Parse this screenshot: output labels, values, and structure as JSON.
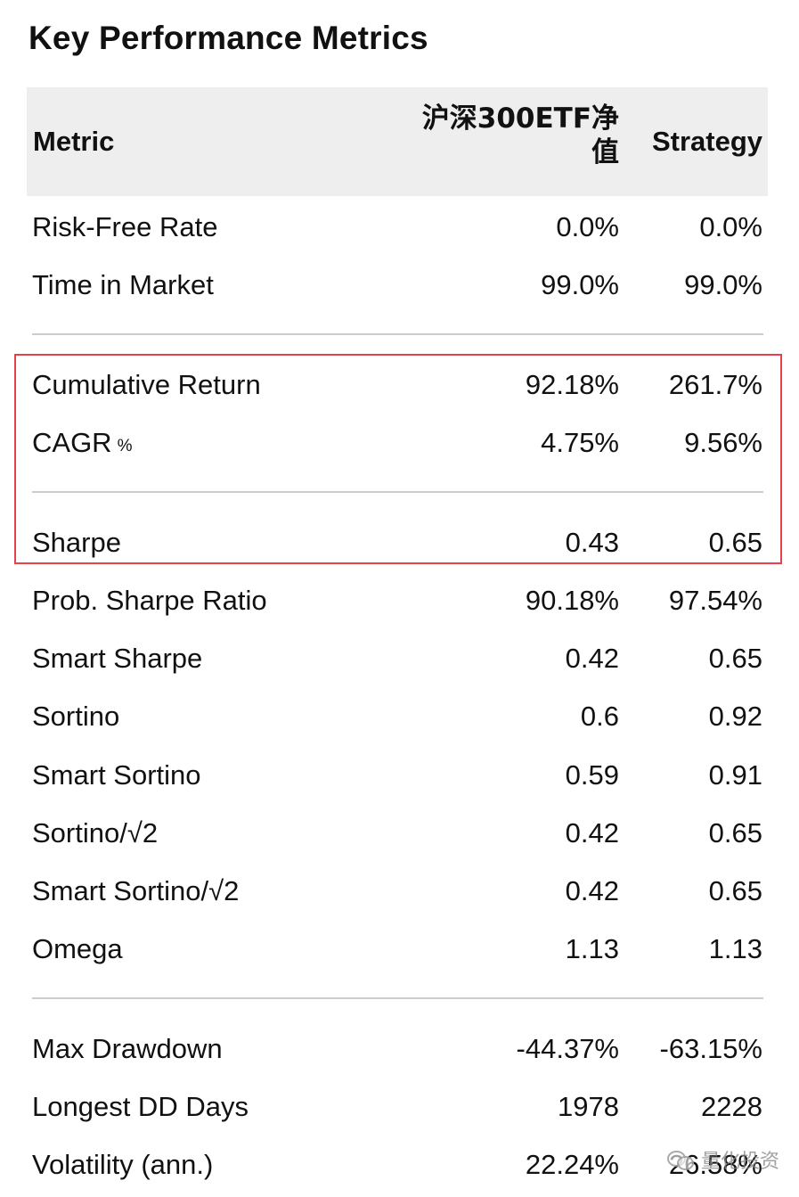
{
  "title": "Key Performance Metrics",
  "header": {
    "metric": "Metric",
    "benchmark": "沪深300ETF净值",
    "strategy": "Strategy"
  },
  "rows": [
    {
      "label": "Risk-Free Rate",
      "sub": "",
      "benchmark": "0.0%",
      "strategy": "0.0%"
    },
    {
      "label": "Time in Market",
      "sub": "",
      "benchmark": "99.0%",
      "strategy": "99.0%"
    },
    {
      "label": "Cumulative Return",
      "sub": "",
      "benchmark": "92.18%",
      "strategy": "261.7%"
    },
    {
      "label": "CAGR",
      "sub": "%",
      "benchmark": "4.75%",
      "strategy": "9.56%"
    },
    {
      "label": "Sharpe",
      "sub": "",
      "benchmark": "0.43",
      "strategy": "0.65"
    },
    {
      "label": "Prob. Sharpe Ratio",
      "sub": "",
      "benchmark": "90.18%",
      "strategy": "97.54%"
    },
    {
      "label": "Smart Sharpe",
      "sub": "",
      "benchmark": "0.42",
      "strategy": "0.65"
    },
    {
      "label": "Sortino",
      "sub": "",
      "benchmark": "0.6",
      "strategy": "0.92"
    },
    {
      "label": "Smart Sortino",
      "sub": "",
      "benchmark": "0.59",
      "strategy": "0.91"
    },
    {
      "label": "Sortino/√2",
      "sub": "",
      "benchmark": "0.42",
      "strategy": "0.65"
    },
    {
      "label": "Smart Sortino/√2",
      "sub": "",
      "benchmark": "0.42",
      "strategy": "0.65"
    },
    {
      "label": "Omega",
      "sub": "",
      "benchmark": "1.13",
      "strategy": "1.13"
    },
    {
      "label": "Max Drawdown",
      "sub": "",
      "benchmark": "-44.37%",
      "strategy": "-63.15%"
    },
    {
      "label": "Longest DD Days",
      "sub": "",
      "benchmark": "1978",
      "strategy": "2228"
    },
    {
      "label": "Volatility (ann.)",
      "sub": "",
      "benchmark": "22.24%",
      "strategy": "26.58%"
    }
  ],
  "watermark": {
    "icon": "wechat-icon",
    "text": "量化投资"
  },
  "colors": {
    "header_bg": "#eeeeee",
    "highlight_border": "#e8414b",
    "separator": "#cccccc"
  }
}
